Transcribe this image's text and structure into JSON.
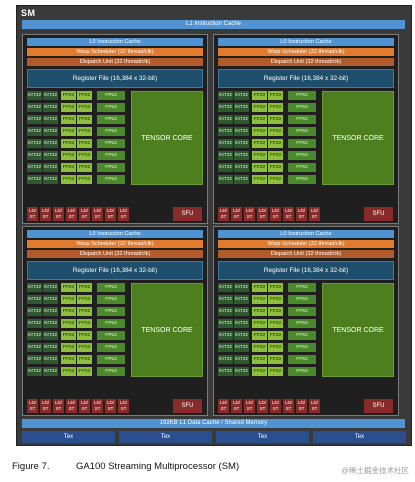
{
  "sm": {
    "title": "SM",
    "l1_instruction_cache": "L1 Instruction Cache",
    "l1_data_cache": "192KB L1 Data Cache / Shared Memory",
    "tex_label": "Tex",
    "tex_units": [
      "Tex",
      "Tex",
      "Tex",
      "Tex"
    ]
  },
  "quadrant": {
    "l0_cache": "L0 Instruction Cache",
    "warp_scheduler": "Warp Scheduler (32 thread/clk)",
    "dispatch_unit": "Dispatch Unit (32 thread/clk)",
    "register_file": "Register File (16,384 x 32-bit)",
    "int32": "INT32",
    "fp32": "FP32",
    "fp64": "FP64",
    "tensor_core": "TENSOR CORE",
    "ldst_top": "LD/",
    "ldst_bottom": "ST",
    "sfu": "SFU"
  },
  "caption": {
    "figure": "Figure 7.",
    "text": "GA100 Streaming Multiprocessor (SM)"
  },
  "watermark": "@稀土掘金技术社区",
  "colors": {
    "l1_blue": "#4f93d3",
    "warp_orange": "#e07b2f",
    "dispatch_brown": "#b25a2a",
    "register_navy": "#1f4e6d",
    "int_dark_green": "#2f5a2f",
    "fp32_light_green": "#8cbf3a",
    "fp64_green": "#4a8a2a",
    "tensor_green": "#4d7f1f",
    "ldst_red": "#8a2b2b",
    "tex_blue": "#2a4f8c"
  }
}
